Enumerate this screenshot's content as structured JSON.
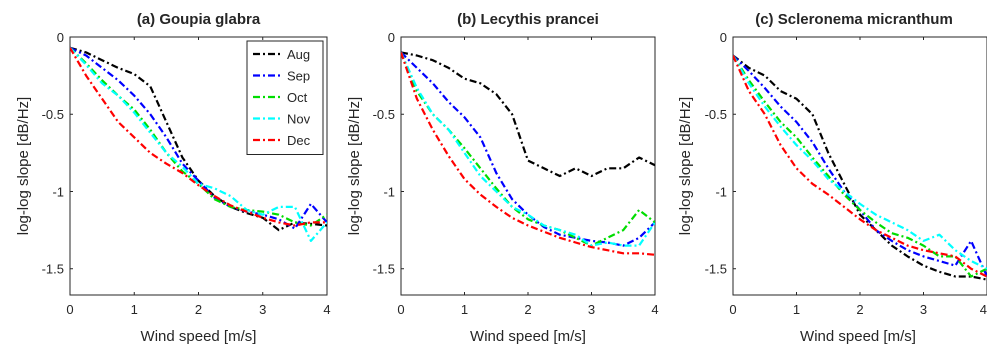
{
  "chart_data": [
    {
      "type": "line",
      "title": "(a) Goupia glabra",
      "xlabel": "Wind speed [m/s]",
      "ylabel": "log-log slope [dB/Hz]",
      "xlim": [
        0,
        4
      ],
      "ylim": [
        -1.67,
        0
      ],
      "xticks": [
        0,
        1,
        2,
        3,
        4
      ],
      "yticks": [
        0,
        -0.5,
        -1,
        -1.5
      ],
      "ytick_labels": [
        "0",
        "-0.5",
        "-1",
        "-1.5"
      ],
      "grid": false,
      "legend": "top-right",
      "series": [
        {
          "name": "Aug",
          "color": "#000000",
          "x": [
            0,
            0.25,
            0.5,
            0.75,
            1,
            1.25,
            1.5,
            1.75,
            2,
            2.25,
            2.5,
            2.75,
            3,
            3.25,
            3.5,
            3.75,
            4
          ],
          "y": [
            -0.07,
            -0.1,
            -0.15,
            -0.2,
            -0.24,
            -0.32,
            -0.55,
            -0.78,
            -0.93,
            -1.03,
            -1.1,
            -1.14,
            -1.17,
            -1.25,
            -1.2,
            -1.21,
            -1.22
          ]
        },
        {
          "name": "Sep",
          "color": "#0000ff",
          "x": [
            0,
            0.25,
            0.5,
            0.75,
            1,
            1.25,
            1.5,
            1.75,
            2,
            2.25,
            2.5,
            2.75,
            3,
            3.25,
            3.5,
            3.75,
            4
          ],
          "y": [
            -0.07,
            -0.12,
            -0.2,
            -0.28,
            -0.38,
            -0.5,
            -0.65,
            -0.82,
            -0.93,
            -1.04,
            -1.1,
            -1.13,
            -1.15,
            -1.18,
            -1.24,
            -1.08,
            -1.2
          ]
        },
        {
          "name": "Oct",
          "color": "#00dd00",
          "x": [
            0,
            0.25,
            0.5,
            0.75,
            1,
            1.25,
            1.5,
            1.75,
            2,
            2.25,
            2.5,
            2.75,
            3,
            3.25,
            3.5,
            3.75,
            4
          ],
          "y": [
            -0.07,
            -0.17,
            -0.28,
            -0.38,
            -0.47,
            -0.6,
            -0.75,
            -0.87,
            -0.95,
            -1.05,
            -1.1,
            -1.12,
            -1.13,
            -1.15,
            -1.2,
            -1.22,
            -1.15
          ]
        },
        {
          "name": "Nov",
          "color": "#00ffff",
          "x": [
            0,
            0.25,
            0.5,
            0.75,
            1,
            1.25,
            1.5,
            1.75,
            2,
            2.25,
            2.5,
            2.75,
            3,
            3.25,
            3.5,
            3.75,
            4
          ],
          "y": [
            -0.07,
            -0.18,
            -0.3,
            -0.38,
            -0.49,
            -0.62,
            -0.75,
            -0.84,
            -0.95,
            -0.98,
            -1.03,
            -1.12,
            -1.15,
            -1.1,
            -1.1,
            -1.32,
            -1.2
          ]
        },
        {
          "name": "Dec",
          "color": "#ff0000",
          "x": [
            0,
            0.25,
            0.5,
            0.75,
            1,
            1.25,
            1.5,
            1.75,
            2,
            2.25,
            2.5,
            2.75,
            3,
            3.25,
            3.5,
            3.75,
            4
          ],
          "y": [
            -0.07,
            -0.25,
            -0.4,
            -0.55,
            -0.65,
            -0.75,
            -0.82,
            -0.88,
            -0.96,
            -1.03,
            -1.09,
            -1.13,
            -1.17,
            -1.2,
            -1.22,
            -1.2,
            -1.2
          ]
        }
      ]
    },
    {
      "type": "line",
      "title": "(b) Lecythis prancei",
      "xlabel": "Wind speed [m/s]",
      "ylabel": "log-log slope [dB/Hz]",
      "xlim": [
        0,
        4
      ],
      "ylim": [
        -1.67,
        0
      ],
      "xticks": [
        0,
        1,
        2,
        3,
        4
      ],
      "yticks": [
        0,
        -0.5,
        -1,
        -1.5
      ],
      "ytick_labels": [
        "0",
        "-0.5",
        "-1",
        "-1.5"
      ],
      "grid": false,
      "series": [
        {
          "name": "Aug",
          "color": "#000000",
          "x": [
            0,
            0.25,
            0.5,
            0.75,
            1,
            1.25,
            1.5,
            1.75,
            2,
            2.25,
            2.5,
            2.75,
            3,
            3.25,
            3.5,
            3.75,
            4
          ],
          "y": [
            -0.1,
            -0.12,
            -0.15,
            -0.2,
            -0.27,
            -0.3,
            -0.37,
            -0.5,
            -0.8,
            -0.85,
            -0.9,
            -0.85,
            -0.9,
            -0.85,
            -0.85,
            -0.78,
            -0.83
          ]
        },
        {
          "name": "Sep",
          "color": "#0000ff",
          "x": [
            0,
            0.25,
            0.5,
            0.75,
            1,
            1.25,
            1.5,
            1.75,
            2,
            2.25,
            2.5,
            2.75,
            3,
            3.25,
            3.5,
            3.75,
            4
          ],
          "y": [
            -0.1,
            -0.2,
            -0.3,
            -0.42,
            -0.52,
            -0.65,
            -0.88,
            -1.05,
            -1.15,
            -1.23,
            -1.28,
            -1.3,
            -1.32,
            -1.33,
            -1.35,
            -1.3,
            -1.2
          ]
        },
        {
          "name": "Oct",
          "color": "#00dd00",
          "x": [
            0,
            0.25,
            0.5,
            0.75,
            1,
            1.25,
            1.5,
            1.75,
            2,
            2.25,
            2.5,
            2.75,
            3,
            3.25,
            3.5,
            3.75,
            4
          ],
          "y": [
            -0.1,
            -0.35,
            -0.5,
            -0.6,
            -0.72,
            -0.85,
            -0.98,
            -1.1,
            -1.18,
            -1.22,
            -1.25,
            -1.3,
            -1.35,
            -1.3,
            -1.25,
            -1.12,
            -1.2
          ]
        },
        {
          "name": "Nov",
          "color": "#00ffff",
          "x": [
            0,
            0.25,
            0.5,
            0.75,
            1,
            1.25,
            1.5,
            1.75,
            2,
            2.25,
            2.5,
            2.75,
            3,
            3.25,
            3.5,
            3.75,
            4
          ],
          "y": [
            -0.1,
            -0.33,
            -0.5,
            -0.6,
            -0.75,
            -0.9,
            -1.0,
            -1.1,
            -1.15,
            -1.22,
            -1.25,
            -1.28,
            -1.35,
            -1.33,
            -1.35,
            -1.35,
            -1.2
          ]
        },
        {
          "name": "Dec",
          "color": "#ff0000",
          "x": [
            0,
            0.25,
            0.5,
            0.75,
            1,
            1.25,
            1.5,
            1.75,
            2,
            2.25,
            2.5,
            2.75,
            3,
            3.25,
            3.5,
            3.75,
            4
          ],
          "y": [
            -0.1,
            -0.4,
            -0.6,
            -0.77,
            -0.92,
            -1.02,
            -1.1,
            -1.17,
            -1.22,
            -1.26,
            -1.3,
            -1.33,
            -1.36,
            -1.38,
            -1.4,
            -1.4,
            -1.41
          ]
        }
      ]
    },
    {
      "type": "line",
      "title": "(c) Scleronema micranthum",
      "xlabel": "Wind speed [m/s]",
      "ylabel": "log-log slope [dB/Hz]",
      "xlim": [
        0,
        4
      ],
      "ylim": [
        -1.67,
        0
      ],
      "xticks": [
        0,
        1,
        2,
        3,
        4
      ],
      "xtick_labels": [
        "0",
        "1",
        "2",
        "3",
        "4"
      ],
      "yticks": [
        0,
        -0.5,
        -1,
        -1.5
      ],
      "ytick_labels": [
        "0",
        "-0.5",
        "-1",
        "-1.5"
      ],
      "grid": false,
      "series": [
        {
          "name": "Aug",
          "color": "#000000",
          "x": [
            0,
            0.25,
            0.5,
            0.75,
            1,
            1.25,
            1.5,
            1.75,
            2,
            2.25,
            2.5,
            2.75,
            3,
            3.25,
            3.5,
            3.75,
            4
          ],
          "y": [
            -0.12,
            -0.2,
            -0.25,
            -0.35,
            -0.4,
            -0.5,
            -0.75,
            -0.95,
            -1.15,
            -1.25,
            -1.35,
            -1.42,
            -1.48,
            -1.52,
            -1.55,
            -1.55,
            -1.57
          ]
        },
        {
          "name": "Sep",
          "color": "#0000ff",
          "x": [
            0,
            0.25,
            0.5,
            0.75,
            1,
            1.25,
            1.5,
            1.75,
            2,
            2.25,
            2.5,
            2.75,
            3,
            3.25,
            3.5,
            3.75,
            4
          ],
          "y": [
            -0.12,
            -0.22,
            -0.33,
            -0.45,
            -0.55,
            -0.68,
            -0.85,
            -1.0,
            -1.12,
            -1.25,
            -1.32,
            -1.38,
            -1.42,
            -1.45,
            -1.48,
            -1.32,
            -1.55
          ]
        },
        {
          "name": "Oct",
          "color": "#00dd00",
          "x": [
            0,
            0.25,
            0.5,
            0.75,
            1,
            1.25,
            1.5,
            1.75,
            2,
            2.25,
            2.5,
            2.75,
            3,
            3.25,
            3.5,
            3.75,
            4
          ],
          "y": [
            -0.12,
            -0.28,
            -0.42,
            -0.55,
            -0.65,
            -0.78,
            -0.9,
            -1.02,
            -1.12,
            -1.2,
            -1.27,
            -1.3,
            -1.35,
            -1.42,
            -1.42,
            -1.55,
            -1.5
          ]
        },
        {
          "name": "Nov",
          "color": "#00ffff",
          "x": [
            0,
            0.25,
            0.5,
            0.75,
            1,
            1.25,
            1.5,
            1.75,
            2,
            2.25,
            2.5,
            2.75,
            3,
            3.25,
            3.5,
            3.75,
            4
          ],
          "y": [
            -0.12,
            -0.3,
            -0.45,
            -0.58,
            -0.7,
            -0.8,
            -0.92,
            -1.0,
            -1.08,
            -1.15,
            -1.2,
            -1.25,
            -1.32,
            -1.28,
            -1.38,
            -1.45,
            -1.5
          ]
        },
        {
          "name": "Dec",
          "color": "#ff0000",
          "x": [
            0,
            0.25,
            0.5,
            0.75,
            1,
            1.25,
            1.5,
            1.75,
            2,
            2.25,
            2.5,
            2.75,
            3,
            3.25,
            3.5,
            3.75,
            4
          ],
          "y": [
            -0.12,
            -0.35,
            -0.5,
            -0.7,
            -0.85,
            -0.95,
            -1.02,
            -1.1,
            -1.18,
            -1.25,
            -1.3,
            -1.35,
            -1.38,
            -1.4,
            -1.42,
            -1.5,
            -1.55
          ]
        }
      ]
    }
  ]
}
